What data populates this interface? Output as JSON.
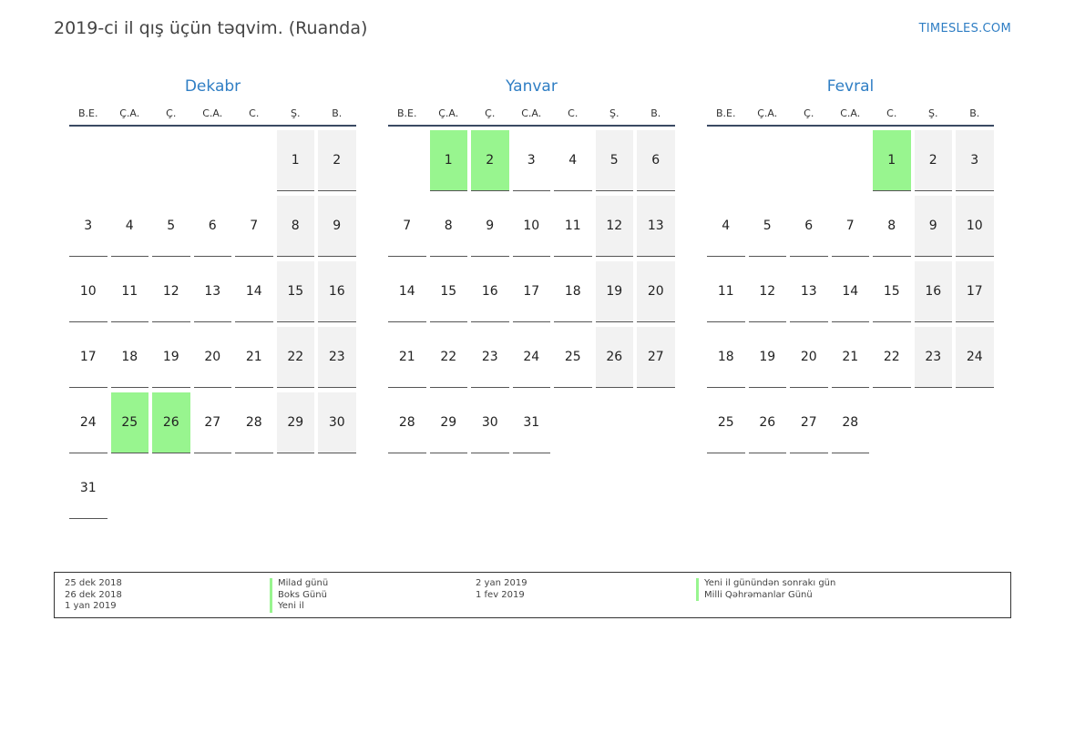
{
  "page": {
    "title": "2019-ci il qış üçün təqvim. (Ruanda)",
    "brand": "TIMESLES.COM"
  },
  "weekdays": [
    "B.E.",
    "Ç.A.",
    "Ç.",
    "C.A.",
    "C.",
    "Ş.",
    "B."
  ],
  "colors": {
    "accent": "#2f7ec4",
    "holiday": "#98f58f",
    "weekend": "#f2f2f2"
  },
  "months": [
    {
      "name": "Dekabr",
      "offset": 5,
      "days": 31,
      "holidays": [
        25,
        26
      ]
    },
    {
      "name": "Yanvar",
      "offset": 1,
      "days": 31,
      "holidays": [
        1,
        2
      ]
    },
    {
      "name": "Fevral",
      "offset": 4,
      "days": 28,
      "holidays": [
        1
      ]
    }
  ],
  "legend": {
    "left_dates": [
      "25 dek 2018",
      "26 dek 2018",
      "1 yan 2019"
    ],
    "left_names": [
      "Milad günü",
      "Boks Günü",
      "Yeni il"
    ],
    "right_dates": [
      "2 yan 2019",
      "1 fev 2019"
    ],
    "right_names": [
      "Yeni il günündən sonrakı gün",
      "Milli Qəhrəmanlar Günü"
    ]
  }
}
